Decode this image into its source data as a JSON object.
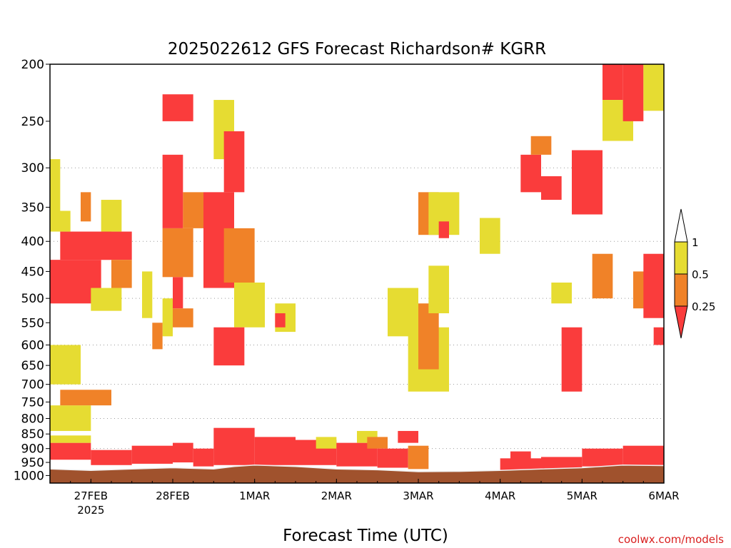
{
  "chart_data": {
    "type": "heatmap",
    "title": "2025022612 GFS Forecast Richardson# KGRR",
    "xlabel": "Forecast Time (UTC)",
    "ylabel": "",
    "credit": "coolwx.com/models",
    "x_axis": {
      "range": [
        "2025-02-26T12:00Z",
        "2025-03-06T00:00Z"
      ],
      "ticks": [
        {
          "label": "27FEB",
          "sublabel": "2025",
          "time": "2025-02-27T00:00Z"
        },
        {
          "label": "28FEB",
          "time": "2025-02-28T00:00Z"
        },
        {
          "label": "1MAR",
          "time": "2025-03-01T00:00Z"
        },
        {
          "label": "2MAR",
          "time": "2025-03-02T00:00Z"
        },
        {
          "label": "3MAR",
          "time": "2025-03-03T00:00Z"
        },
        {
          "label": "4MAR",
          "time": "2025-03-04T00:00Z"
        },
        {
          "label": "5MAR",
          "time": "2025-03-05T00:00Z"
        },
        {
          "label": "6MAR",
          "time": "2025-03-06T00:00Z"
        }
      ]
    },
    "y_axis": {
      "unit": "hPa",
      "scale": "log",
      "inverted": true,
      "range": [
        1030,
        200
      ],
      "ticks": [
        200,
        250,
        300,
        350,
        400,
        450,
        500,
        550,
        600,
        650,
        700,
        750,
        800,
        850,
        900,
        950,
        1000
      ],
      "dotted_grid": [
        300,
        400,
        500,
        600,
        700,
        800,
        900
      ]
    },
    "legend": {
      "placement": "right",
      "bins": [
        {
          "label": "< 0.25",
          "color": "#fa3c3c"
        },
        {
          "label": "0.25 - 0.5",
          "color": "#f08228"
        },
        {
          "label": "0.5 - 1",
          "color": "#e6dc32"
        },
        {
          "label": "> 1",
          "color": "#ffffff"
        }
      ],
      "tick_labels": [
        "1",
        "0.5",
        "0.25"
      ]
    },
    "ground_color": "#a0522d",
    "surface_line_color": "#f0f0f0",
    "cells": [
      {
        "t": "2025-02-26T12:00Z",
        "t_end": "2025-02-27T00:00Z",
        "p_top": 880,
        "p_bot": 940,
        "category": "<0.25"
      },
      {
        "t": "2025-02-26T12:00Z",
        "t_end": "2025-02-27T00:00Z",
        "p_top": 855,
        "p_bot": 880,
        "category": "0.5-1"
      },
      {
        "t": "2025-02-26T12:00Z",
        "t_end": "2025-02-27T00:00Z",
        "p_top": 760,
        "p_bot": 840,
        "category": "0.5-1"
      },
      {
        "t": "2025-02-26T15:00Z",
        "t_end": "2025-02-27T06:00Z",
        "p_top": 715,
        "p_bot": 760,
        "category": "0.25-0.5"
      },
      {
        "t": "2025-02-26T12:00Z",
        "t_end": "2025-02-26T21:00Z",
        "p_top": 600,
        "p_bot": 700,
        "category": "0.5-1"
      },
      {
        "t": "2025-02-26T12:00Z",
        "t_end": "2025-02-27T03:00Z",
        "p_top": 430,
        "p_bot": 510,
        "category": "<0.25"
      },
      {
        "t": "2025-02-26T15:00Z",
        "t_end": "2025-02-27T06:00Z",
        "p_top": 385,
        "p_bot": 430,
        "category": "<0.25"
      },
      {
        "t": "2025-02-26T12:00Z",
        "t_end": "2025-02-26T18:00Z",
        "p_top": 355,
        "p_bot": 385,
        "category": "0.5-1"
      },
      {
        "t": "2025-02-26T12:00Z",
        "t_end": "2025-02-26T15:00Z",
        "p_top": 290,
        "p_bot": 355,
        "category": "0.5-1"
      },
      {
        "t": "2025-02-26T21:00Z",
        "t_end": "2025-02-27T00:00Z",
        "p_top": 330,
        "p_bot": 370,
        "category": "0.25-0.5"
      },
      {
        "t": "2025-02-27T00:00Z",
        "t_end": "2025-02-27T09:00Z",
        "p_top": 480,
        "p_bot": 525,
        "category": "0.5-1"
      },
      {
        "t": "2025-02-27T03:00Z",
        "t_end": "2025-02-27T12:00Z",
        "p_top": 385,
        "p_bot": 430,
        "category": "<0.25"
      },
      {
        "t": "2025-02-27T06:00Z",
        "t_end": "2025-02-27T12:00Z",
        "p_top": 430,
        "p_bot": 480,
        "category": "0.25-0.5"
      },
      {
        "t": "2025-02-27T03:00Z",
        "t_end": "2025-02-27T09:00Z",
        "p_top": 340,
        "p_bot": 385,
        "category": "0.5-1"
      },
      {
        "t": "2025-02-27T00:00Z",
        "t_end": "2025-02-27T12:00Z",
        "p_top": 905,
        "p_bot": 960,
        "category": "<0.25"
      },
      {
        "t": "2025-02-27T12:00Z",
        "t_end": "2025-02-28T00:00Z",
        "p_top": 890,
        "p_bot": 955,
        "category": "<0.25"
      },
      {
        "t": "2025-02-27T15:00Z",
        "t_end": "2025-02-27T18:00Z",
        "p_top": 450,
        "p_bot": 540,
        "category": "0.5-1"
      },
      {
        "t": "2025-02-27T21:00Z",
        "t_end": "2025-02-28T00:00Z",
        "p_top": 500,
        "p_bot": 580,
        "category": "0.5-1"
      },
      {
        "t": "2025-02-27T18:00Z",
        "t_end": "2025-02-27T21:00Z",
        "p_top": 550,
        "p_bot": 610,
        "category": "0.25-0.5"
      },
      {
        "t": "2025-02-28T00:00Z",
        "t_end": "2025-02-28T06:00Z",
        "p_top": 880,
        "p_bot": 950,
        "category": "<0.25"
      },
      {
        "t": "2025-02-28T06:00Z",
        "t_end": "2025-02-28T12:00Z",
        "p_top": 900,
        "p_bot": 965,
        "category": "<0.25"
      },
      {
        "t": "2025-02-28T00:00Z",
        "t_end": "2025-02-28T03:00Z",
        "p_top": 460,
        "p_bot": 520,
        "category": "<0.25"
      },
      {
        "t": "2025-02-28T00:00Z",
        "t_end": "2025-02-28T06:00Z",
        "p_top": 520,
        "p_bot": 560,
        "category": "0.25-0.5"
      },
      {
        "t": "2025-02-27T21:00Z",
        "t_end": "2025-02-28T06:00Z",
        "p_top": 380,
        "p_bot": 460,
        "category": "0.25-0.5"
      },
      {
        "t": "2025-02-27T21:00Z",
        "t_end": "2025-02-28T03:00Z",
        "p_top": 285,
        "p_bot": 380,
        "category": "<0.25"
      },
      {
        "t": "2025-02-27T21:00Z",
        "t_end": "2025-02-28T06:00Z",
        "p_top": 225,
        "p_bot": 250,
        "category": "<0.25"
      },
      {
        "t": "2025-02-28T03:00Z",
        "t_end": "2025-02-28T09:00Z",
        "p_top": 330,
        "p_bot": 380,
        "category": "0.25-0.5"
      },
      {
        "t": "2025-02-28T09:00Z",
        "t_end": "2025-02-28T18:00Z",
        "p_top": 330,
        "p_bot": 480,
        "category": "<0.25"
      },
      {
        "t": "2025-02-28T12:00Z",
        "t_end": "2025-02-28T18:00Z",
        "p_top": 230,
        "p_bot": 290,
        "category": "0.5-1"
      },
      {
        "t": "2025-02-28T15:00Z",
        "t_end": "2025-02-28T21:00Z",
        "p_top": 260,
        "p_bot": 330,
        "category": "<0.25"
      },
      {
        "t": "2025-02-28T15:00Z",
        "t_end": "2025-03-01T00:00Z",
        "p_top": 380,
        "p_bot": 470,
        "category": "0.25-0.5"
      },
      {
        "t": "2025-02-28T18:00Z",
        "t_end": "2025-03-01T03:00Z",
        "p_top": 470,
        "p_bot": 560,
        "category": "0.5-1"
      },
      {
        "t": "2025-02-28T12:00Z",
        "t_end": "2025-02-28T21:00Z",
        "p_top": 560,
        "p_bot": 650,
        "category": "<0.25"
      },
      {
        "t": "2025-02-28T12:00Z",
        "t_end": "2025-03-01T00:00Z",
        "p_top": 830,
        "p_bot": 960,
        "category": "<0.25"
      },
      {
        "t": "2025-03-01T00:00Z",
        "t_end": "2025-03-01T12:00Z",
        "p_top": 860,
        "p_bot": 960,
        "category": "<0.25"
      },
      {
        "t": "2025-03-01T06:00Z",
        "t_end": "2025-03-01T12:00Z",
        "p_top": 510,
        "p_bot": 570,
        "category": "0.5-1"
      },
      {
        "t": "2025-03-01T06:00Z",
        "t_end": "2025-03-01T09:00Z",
        "p_top": 530,
        "p_bot": 560,
        "category": "<0.25"
      },
      {
        "t": "2025-03-01T12:00Z",
        "t_end": "2025-03-02T00:00Z",
        "p_top": 870,
        "p_bot": 960,
        "category": "<0.25"
      },
      {
        "t": "2025-03-01T18:00Z",
        "t_end": "2025-03-02T00:00Z",
        "p_top": 860,
        "p_bot": 900,
        "category": "0.5-1"
      },
      {
        "t": "2025-03-02T00:00Z",
        "t_end": "2025-03-02T12:00Z",
        "p_top": 880,
        "p_bot": 965,
        "category": "<0.25"
      },
      {
        "t": "2025-03-02T06:00Z",
        "t_end": "2025-03-02T12:00Z",
        "p_top": 840,
        "p_bot": 880,
        "category": "0.5-1"
      },
      {
        "t": "2025-03-02T09:00Z",
        "t_end": "2025-03-02T15:00Z",
        "p_top": 860,
        "p_bot": 900,
        "category": "0.25-0.5"
      },
      {
        "t": "2025-03-02T12:00Z",
        "t_end": "2025-03-02T21:00Z",
        "p_top": 900,
        "p_bot": 970,
        "category": "<0.25"
      },
      {
        "t": "2025-03-02T18:00Z",
        "t_end": "2025-03-03T00:00Z",
        "p_top": 840,
        "p_bot": 880,
        "category": "<0.25"
      },
      {
        "t": "2025-03-02T21:00Z",
        "t_end": "2025-03-03T03:00Z",
        "p_top": 890,
        "p_bot": 975,
        "category": "0.25-0.5"
      },
      {
        "t": "2025-03-02T15:00Z",
        "t_end": "2025-03-03T00:00Z",
        "p_top": 480,
        "p_bot": 580,
        "category": "0.5-1"
      },
      {
        "t": "2025-03-02T21:00Z",
        "t_end": "2025-03-03T09:00Z",
        "p_top": 560,
        "p_bot": 720,
        "category": "0.5-1"
      },
      {
        "t": "2025-03-03T00:00Z",
        "t_end": "2025-03-03T06:00Z",
        "p_top": 510,
        "p_bot": 660,
        "category": "0.25-0.5"
      },
      {
        "t": "2025-03-03T03:00Z",
        "t_end": "2025-03-03T09:00Z",
        "p_top": 440,
        "p_bot": 530,
        "category": "0.5-1"
      },
      {
        "t": "2025-03-03T00:00Z",
        "t_end": "2025-03-03T06:00Z",
        "p_top": 330,
        "p_bot": 390,
        "category": "0.25-0.5"
      },
      {
        "t": "2025-03-03T03:00Z",
        "t_end": "2025-03-03T12:00Z",
        "p_top": 330,
        "p_bot": 390,
        "category": "0.5-1"
      },
      {
        "t": "2025-03-03T06:00Z",
        "t_end": "2025-03-03T09:00Z",
        "p_top": 370,
        "p_bot": 395,
        "category": "<0.25"
      },
      {
        "t": "2025-03-03T18:00Z",
        "t_end": "2025-03-04T00:00Z",
        "p_top": 365,
        "p_bot": 420,
        "category": "0.5-1"
      },
      {
        "t": "2025-03-04T00:00Z",
        "t_end": "2025-03-04T12:00Z",
        "p_top": 935,
        "p_bot": 980,
        "category": "<0.25"
      },
      {
        "t": "2025-03-04T03:00Z",
        "t_end": "2025-03-04T09:00Z",
        "p_top": 910,
        "p_bot": 950,
        "category": "<0.25"
      },
      {
        "t": "2025-03-04T06:00Z",
        "t_end": "2025-03-04T12:00Z",
        "p_top": 285,
        "p_bot": 330,
        "category": "<0.25"
      },
      {
        "t": "2025-03-04T09:00Z",
        "t_end": "2025-03-04T15:00Z",
        "p_top": 265,
        "p_bot": 285,
        "category": "0.25-0.5"
      },
      {
        "t": "2025-03-04T12:00Z",
        "t_end": "2025-03-04T18:00Z",
        "p_top": 310,
        "p_bot": 340,
        "category": "<0.25"
      },
      {
        "t": "2025-03-04T12:00Z",
        "t_end": "2025-03-05T00:00Z",
        "p_top": 930,
        "p_bot": 975,
        "category": "<0.25"
      },
      {
        "t": "2025-03-04T15:00Z",
        "t_end": "2025-03-04T21:00Z",
        "p_top": 470,
        "p_bot": 510,
        "category": "0.5-1"
      },
      {
        "t": "2025-03-04T18:00Z",
        "t_end": "2025-03-05T00:00Z",
        "p_top": 560,
        "p_bot": 720,
        "category": "<0.25"
      },
      {
        "t": "2025-03-04T21:00Z",
        "t_end": "2025-03-05T06:00Z",
        "p_top": 280,
        "p_bot": 360,
        "category": "<0.25"
      },
      {
        "t": "2025-03-05T00:00Z",
        "t_end": "2025-03-05T12:00Z",
        "p_top": 900,
        "p_bot": 965,
        "category": "<0.25"
      },
      {
        "t": "2025-03-05T03:00Z",
        "t_end": "2025-03-05T09:00Z",
        "p_top": 420,
        "p_bot": 500,
        "category": "0.25-0.5"
      },
      {
        "t": "2025-03-05T06:00Z",
        "t_end": "2025-03-05T12:00Z",
        "p_top": 200,
        "p_bot": 230,
        "category": "<0.25"
      },
      {
        "t": "2025-03-05T06:00Z",
        "t_end": "2025-03-05T15:00Z",
        "p_top": 230,
        "p_bot": 270,
        "category": "0.5-1"
      },
      {
        "t": "2025-03-05T12:00Z",
        "t_end": "2025-03-05T18:00Z",
        "p_top": 200,
        "p_bot": 250,
        "category": "<0.25"
      },
      {
        "t": "2025-03-05T12:00Z",
        "t_end": "2025-03-06T00:00Z",
        "p_top": 890,
        "p_bot": 960,
        "category": "<0.25"
      },
      {
        "t": "2025-03-05T15:00Z",
        "t_end": "2025-03-05T21:00Z",
        "p_top": 450,
        "p_bot": 520,
        "category": "0.25-0.5"
      },
      {
        "t": "2025-03-05T18:00Z",
        "t_end": "2025-03-06T00:00Z",
        "p_top": 200,
        "p_bot": 240,
        "category": "0.5-1"
      },
      {
        "t": "2025-03-05T18:00Z",
        "t_end": "2025-03-06T00:00Z",
        "p_top": 420,
        "p_bot": 540,
        "category": "<0.25"
      },
      {
        "t": "2025-03-05T21:00Z",
        "t_end": "2025-03-06T00:00Z",
        "p_top": 560,
        "p_bot": 600,
        "category": "<0.25"
      }
    ],
    "surface_pressure": [
      {
        "t": "2025-02-26T12:00Z",
        "p": 975
      },
      {
        "t": "2025-02-27T00:00Z",
        "p": 980
      },
      {
        "t": "2025-02-27T12:00Z",
        "p": 975
      },
      {
        "t": "2025-02-28T00:00Z",
        "p": 970
      },
      {
        "t": "2025-02-28T12:00Z",
        "p": 975
      },
      {
        "t": "2025-02-28T18:00Z",
        "p": 965
      },
      {
        "t": "2025-03-01T00:00Z",
        "p": 960
      },
      {
        "t": "2025-03-01T12:00Z",
        "p": 965
      },
      {
        "t": "2025-03-02T00:00Z",
        "p": 975
      },
      {
        "t": "2025-03-02T12:00Z",
        "p": 978
      },
      {
        "t": "2025-03-03T00:00Z",
        "p": 985
      },
      {
        "t": "2025-03-03T12:00Z",
        "p": 984
      },
      {
        "t": "2025-03-04T00:00Z",
        "p": 980
      },
      {
        "t": "2025-03-04T12:00Z",
        "p": 975
      },
      {
        "t": "2025-03-05T00:00Z",
        "p": 970
      },
      {
        "t": "2025-03-05T12:00Z",
        "p": 960
      },
      {
        "t": "2025-03-06T00:00Z",
        "p": 962
      }
    ]
  }
}
